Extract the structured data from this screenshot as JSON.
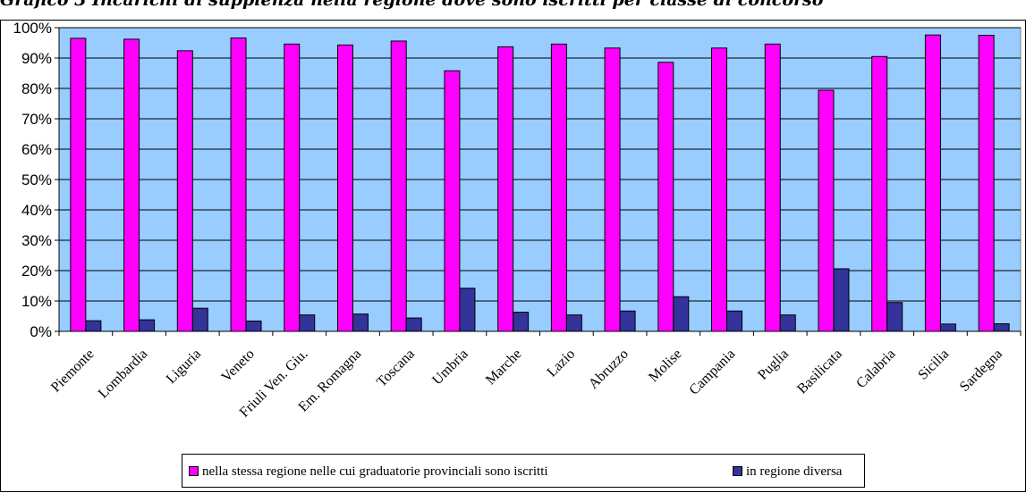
{
  "header": {
    "title_fragment": "Grafico 3 Incarichi di supplenza nella regione dove sono iscritti per classe di concorso"
  },
  "chart_data": {
    "type": "bar",
    "categories": [
      "Piemonte",
      "Lombardia",
      "Liguria",
      "Veneto",
      "Friuli Ven. Giu.",
      "Em. Romagna",
      "Toscana",
      "Umbria",
      "Marche",
      "Lazio",
      "Abruzzo",
      "Molise",
      "Campania",
      "Puglia",
      "Basilicata",
      "Calabria",
      "Sicilia",
      "Sardegna"
    ],
    "series": [
      {
        "name": "nella stessa regione nelle cui graduatorie provinciali sono iscritti",
        "color": "#ff00ff",
        "values": [
          96.5,
          96.2,
          92.4,
          96.6,
          94.6,
          94.3,
          95.6,
          85.8,
          93.7,
          94.6,
          93.3,
          88.6,
          93.3,
          94.6,
          79.4,
          90.5,
          97.6,
          97.5
        ]
      },
      {
        "name": "in regione diversa",
        "color": "#333399",
        "values": [
          3.5,
          3.8,
          7.6,
          3.4,
          5.4,
          5.7,
          4.4,
          14.2,
          6.3,
          5.4,
          6.7,
          11.4,
          6.7,
          5.4,
          20.6,
          9.5,
          2.4,
          2.5
        ]
      }
    ],
    "yticks": [
      "0%",
      "10%",
      "20%",
      "30%",
      "40%",
      "50%",
      "60%",
      "70%",
      "80%",
      "90%",
      "100%"
    ],
    "ylim": [
      0,
      100
    ],
    "grid": true,
    "plot_background": "#99ccff",
    "legend_position": "bottom"
  }
}
